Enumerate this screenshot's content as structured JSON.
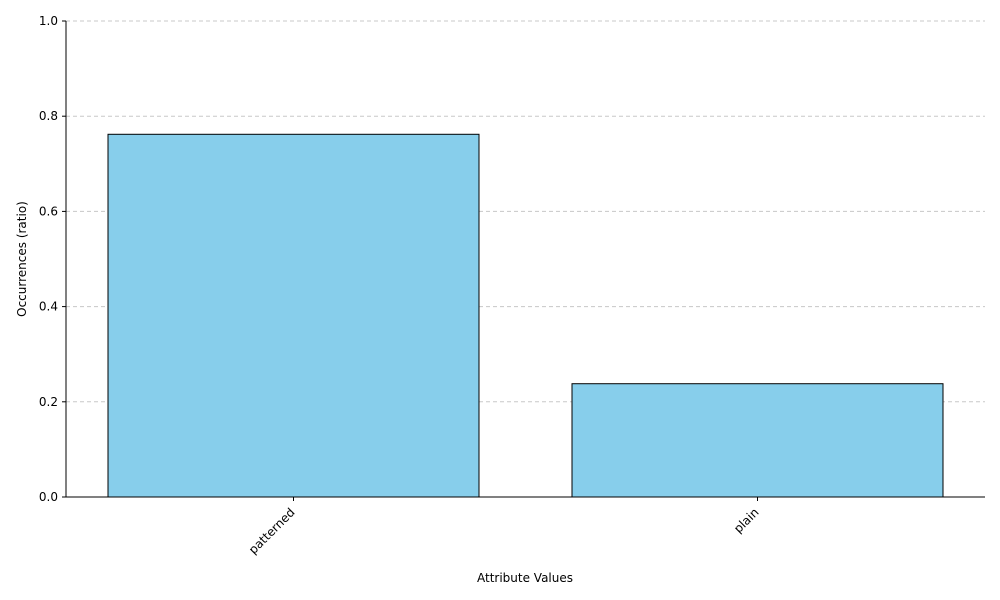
{
  "chart_data": {
    "type": "bar",
    "categories": [
      "patterned",
      "plain"
    ],
    "values": [
      0.762,
      0.238
    ],
    "title": "",
    "xlabel": "Attribute Values",
    "ylabel": "Occurrences (ratio)",
    "ylim": [
      0,
      1.0
    ],
    "yticks": [
      "0.0",
      "0.2",
      "0.4",
      "0.6",
      "0.8",
      "1.0"
    ],
    "grid": "y-dashed",
    "bar_color": "#87CEEB",
    "bar_edge_color": "#000000",
    "grid_color": "#c8c8c8"
  }
}
